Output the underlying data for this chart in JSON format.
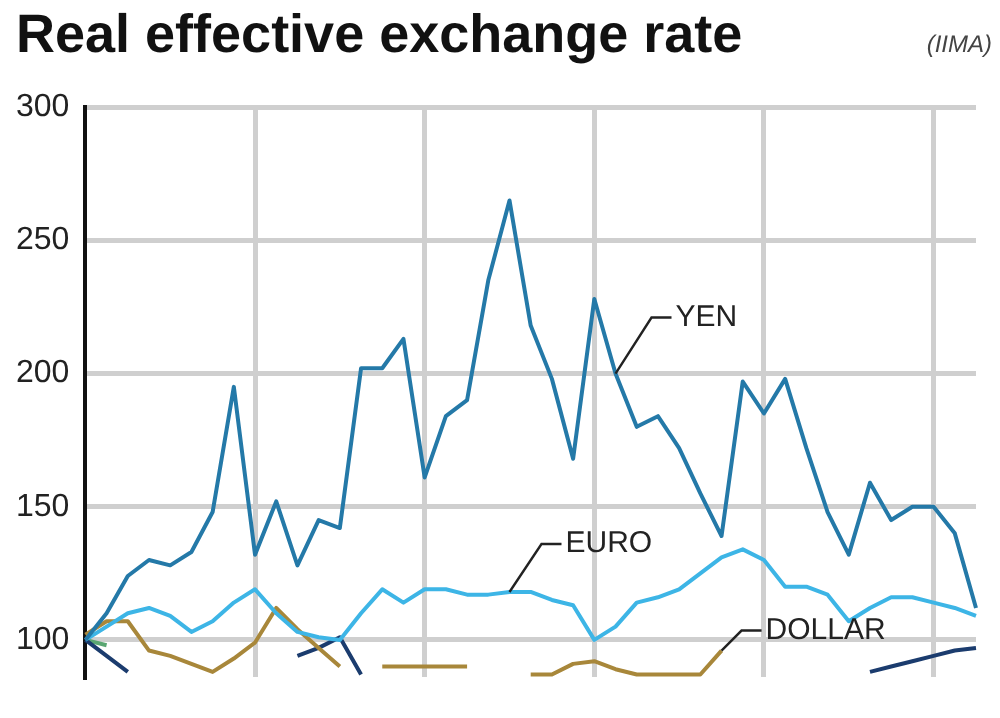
{
  "chart_data": {
    "type": "line",
    "title": "Real effective exchange rate",
    "subtitle": "(IIMA)",
    "categories": [
      null,
      null,
      null,
      null,
      null,
      null,
      null,
      null,
      null,
      null,
      null,
      null,
      null,
      null,
      null,
      null,
      null,
      null,
      null,
      null,
      null,
      null,
      null,
      null,
      null,
      null,
      null,
      null,
      null,
      null,
      null,
      null,
      null,
      null,
      null,
      null,
      null,
      null,
      null,
      null,
      null,
      null,
      null
    ],
    "ylim": [
      86,
      300
    ],
    "yticks": [
      100,
      150,
      200,
      250,
      300
    ],
    "grid": true,
    "marker": "none",
    "line_style": "solid",
    "series": [
      {
        "name": "YEN",
        "color": "#2479a8",
        "values": [
          100,
          110,
          124,
          130,
          128,
          133,
          148,
          195,
          132,
          152,
          128,
          145,
          142,
          202,
          202,
          213,
          161,
          184,
          190,
          235,
          265,
          218,
          198,
          168,
          228,
          200,
          180,
          184,
          172,
          155,
          139,
          197,
          185,
          198,
          172,
          148,
          132,
          159,
          145,
          150,
          150,
          140,
          112
        ]
      },
      {
        "name": "EURO",
        "color": "#3db5e6",
        "values": [
          100,
          105,
          110,
          112,
          109,
          103,
          107,
          114,
          119,
          110,
          103,
          101,
          100,
          110,
          119,
          114,
          119,
          119,
          117,
          117,
          118,
          118,
          115,
          113,
          100,
          105,
          114,
          116,
          119,
          125,
          131,
          134,
          130,
          120,
          120,
          117,
          107,
          112,
          116,
          116,
          114,
          112,
          109
        ]
      },
      {
        "name": "DOLLAR",
        "color": "#a8873a",
        "values": [
          102,
          107,
          107,
          96,
          94,
          91,
          88,
          93,
          99,
          112,
          104,
          97,
          90,
          null,
          90,
          90,
          90,
          90,
          90,
          null,
          null,
          87,
          87,
          91,
          92,
          89,
          87,
          87,
          87,
          87,
          96,
          null,
          null,
          null,
          null,
          null,
          null,
          null,
          null,
          null,
          null,
          null,
          null
        ]
      },
      {
        "color": "#1b3c6e",
        "values": [
          100,
          94,
          88,
          null,
          null,
          null,
          null,
          null,
          null,
          null,
          94,
          97,
          101,
          87,
          null,
          null,
          null,
          null,
          null,
          null,
          null,
          null,
          null,
          null,
          null,
          null,
          null,
          null,
          null,
          null,
          null,
          null,
          null,
          null,
          null,
          null,
          null,
          88,
          90,
          92,
          94,
          96,
          97
        ]
      },
      {
        "color": "#5aa672",
        "values": [
          100,
          98,
          null,
          null,
          null,
          null,
          null,
          null,
          null,
          null,
          null,
          null,
          null,
          null,
          null,
          null,
          null,
          null,
          null,
          null,
          null,
          null,
          null,
          null,
          null,
          null,
          null,
          null,
          null,
          null,
          null,
          null,
          null,
          null,
          null,
          null,
          null,
          null,
          null,
          null,
          null,
          null,
          null
        ]
      }
    ]
  }
}
